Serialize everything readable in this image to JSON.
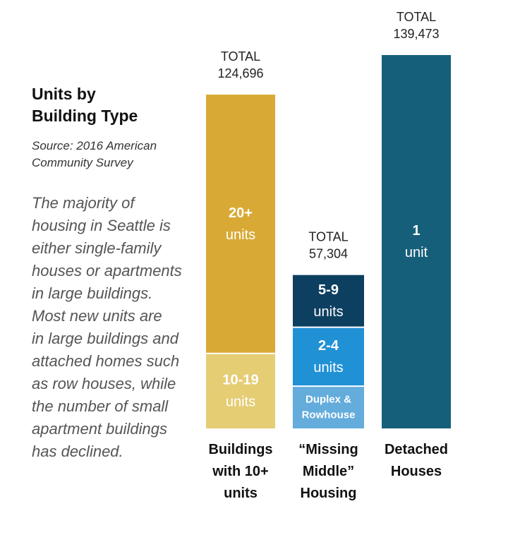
{
  "text": {
    "title_line1": "Units by",
    "title_line2": "Building Type",
    "source_line1": "Source: 2016 American",
    "source_line2": "Community Survey",
    "body_lines": [
      "The majority of",
      "housing in Seattle is",
      "either single-family",
      "houses or apartments",
      "in large buildings.",
      "Most new units are",
      "in large buildings and",
      "attached homes such",
      "as row houses, while",
      "the number of small",
      "apartment buildings",
      "has declined."
    ]
  },
  "chart_data": {
    "type": "bar",
    "stacked": true,
    "ymax": 139473,
    "bars": [
      {
        "name_lines": [
          "Buildings",
          "with 10+",
          "units"
        ],
        "total_label": "TOTAL",
        "total_value": "124,696",
        "total": 124696,
        "segments": [
          {
            "label_lines": [
              "10-19",
              "units"
            ],
            "value": 28000,
            "color": "#e5cd74"
          },
          {
            "label_lines": [
              "20+",
              "units"
            ],
            "value": 96696,
            "color": "#d8aa35"
          }
        ]
      },
      {
        "name_lines": [
          "“Missing",
          "Middle”",
          "Housing"
        ],
        "total_label": "TOTAL",
        "total_value": "57,304",
        "total": 57304,
        "segments": [
          {
            "label_lines": [
              "Duplex &",
              "Rowhouse"
            ],
            "value": 15800,
            "color": "#63acdc"
          },
          {
            "label_lines": [
              "2-4",
              "units"
            ],
            "value": 22000,
            "color": "#2191d6"
          },
          {
            "label_lines": [
              "5-9",
              "units"
            ],
            "value": 19504,
            "color": "#0d3f60"
          }
        ]
      },
      {
        "name_lines": [
          "Detached",
          "Houses"
        ],
        "total_label": "TOTAL",
        "total_value": "139,473",
        "total": 139473,
        "segments": [
          {
            "label_lines": [
              "1",
              "unit"
            ],
            "value": 139473,
            "color": "#155f7a"
          }
        ]
      }
    ]
  }
}
